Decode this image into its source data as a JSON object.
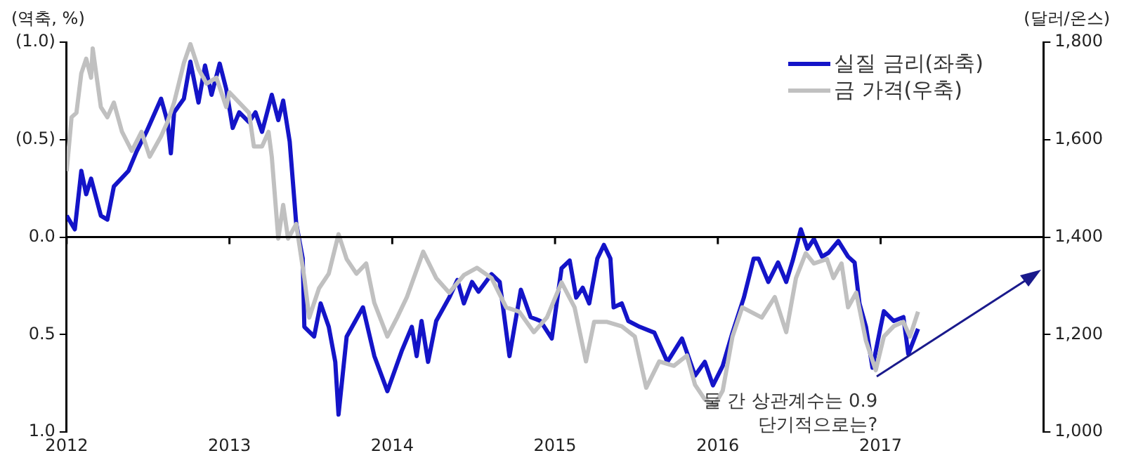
{
  "chart_data": {
    "type": "line",
    "ylabel": "(역축, %)",
    "y2label": "(달러/온스)",
    "xlim": [
      2012,
      2018
    ],
    "xticks": [
      2012,
      2013,
      2014,
      2015,
      2016,
      2017
    ],
    "ylim": [
      1,
      -1
    ],
    "yticks": [
      {
        "value": -1,
        "label": "(1.0)"
      },
      {
        "value": -0.5,
        "label": "(0.5)"
      },
      {
        "value": 0,
        "label": "0.0"
      },
      {
        "value": 0.5,
        "label": "0.5"
      },
      {
        "value": 1,
        "label": "1.0"
      }
    ],
    "y2lim": [
      1000,
      1800
    ],
    "y2ticks": [
      {
        "value": 1000,
        "label": "1,000"
      },
      {
        "value": 1200,
        "label": "1,200"
      },
      {
        "value": 1400,
        "label": "1,400"
      },
      {
        "value": 1600,
        "label": "1,600"
      },
      {
        "value": 1800,
        "label": "1,800"
      }
    ],
    "legend": "top right",
    "annotations": [
      "둘 간 상관계수는 0.9",
      "단기적으로는?"
    ],
    "series": [
      {
        "name": "금 가격(우축)",
        "color": "#c0c0c0",
        "axis": "y2",
        "x": [
          2012.0,
          2012.03,
          2012.06,
          2012.09,
          2012.12,
          2012.15,
          2012.16,
          2012.21,
          2012.25,
          2012.29,
          2012.34,
          2012.4,
          2012.46,
          2012.51,
          2012.58,
          2012.62,
          2012.66,
          2012.72,
          2012.76,
          2012.81,
          2012.86,
          2012.92,
          2012.98,
          2013.0,
          2013.06,
          2013.12,
          2013.15,
          2013.2,
          2013.24,
          2013.26,
          2013.3,
          2013.33,
          2013.36,
          2013.41,
          2013.46,
          2013.49,
          2013.55,
          2013.61,
          2013.67,
          2013.72,
          2013.78,
          2013.84,
          2013.89,
          2013.97,
          2014.03,
          2014.09,
          2014.19,
          2014.27,
          2014.35,
          2014.44,
          2014.52,
          2014.61,
          2014.7,
          2014.78,
          2014.87,
          2014.95,
          2015.04,
          2015.12,
          2015.19,
          2015.24,
          2015.32,
          2015.41,
          2015.49,
          2015.56,
          2015.64,
          2015.73,
          2015.81,
          2015.86,
          2015.92,
          2015.98,
          2016.03,
          2016.09,
          2016.15,
          2016.27,
          2016.35,
          2016.42,
          2016.48,
          2016.54,
          2016.59,
          2016.67,
          2016.71,
          2016.76,
          2016.8,
          2016.85,
          2016.91,
          2016.97,
          2017.02,
          2017.08,
          2017.14,
          2017.18,
          2017.23
        ],
        "values": [
          1535,
          1646,
          1655,
          1736,
          1766,
          1727,
          1787,
          1667,
          1646,
          1676,
          1616,
          1577,
          1616,
          1565,
          1607,
          1637,
          1676,
          1757,
          1796,
          1745,
          1715,
          1727,
          1667,
          1697,
          1676,
          1655,
          1586,
          1586,
          1616,
          1565,
          1397,
          1466,
          1397,
          1427,
          1316,
          1235,
          1295,
          1325,
          1406,
          1355,
          1325,
          1346,
          1265,
          1196,
          1235,
          1277,
          1370,
          1316,
          1286,
          1322,
          1337,
          1316,
          1256,
          1247,
          1205,
          1235,
          1307,
          1256,
          1145,
          1226,
          1226,
          1217,
          1196,
          1091,
          1145,
          1136,
          1157,
          1097,
          1067,
          1055,
          1085,
          1196,
          1256,
          1235,
          1277,
          1205,
          1316,
          1367,
          1346,
          1355,
          1316,
          1346,
          1256,
          1286,
          1187,
          1127,
          1196,
          1217,
          1226,
          1196,
          1247
        ]
      },
      {
        "name": "실질 금리(좌축)",
        "color": "#1414c8",
        "x": [
          2012.0,
          2012.05,
          2012.09,
          2012.12,
          2012.15,
          2012.21,
          2012.25,
          2012.29,
          2012.38,
          2012.43,
          2012.49,
          2012.58,
          2012.62,
          2012.64,
          2012.66,
          2012.72,
          2012.76,
          2012.81,
          2012.85,
          2012.89,
          2012.94,
          2012.98,
          2013.02,
          2013.06,
          2013.12,
          2013.16,
          2013.2,
          2013.26,
          2013.3,
          2013.33,
          2013.37,
          2013.41,
          2013.45,
          2013.46,
          2013.52,
          2013.56,
          2013.61,
          2013.65,
          2013.67,
          2013.72,
          2013.82,
          2013.89,
          2013.97,
          2014.06,
          2014.12,
          2014.15,
          2014.18,
          2014.22,
          2014.27,
          2014.35,
          2014.4,
          2014.44,
          2014.49,
          2014.53,
          2014.61,
          2014.66,
          2014.72,
          2014.79,
          2014.85,
          2014.91,
          2014.98,
          2015.04,
          2015.09,
          2015.13,
          2015.17,
          2015.21,
          2015.26,
          2015.3,
          2015.34,
          2015.36,
          2015.41,
          2015.45,
          2015.52,
          2015.61,
          2015.69,
          2015.78,
          2015.86,
          2015.92,
          2015.97,
          2016.03,
          2016.09,
          2016.16,
          2016.22,
          2016.25,
          2016.31,
          2016.37,
          2016.42,
          2016.46,
          2016.51,
          2016.55,
          2016.59,
          2016.64,
          2016.68,
          2016.74,
          2016.8,
          2016.84,
          2016.87,
          2016.91,
          2016.95,
          2017.0,
          2017.02,
          2017.08,
          2017.14,
          2017.17,
          2017.23
        ],
        "values": [
          -0.11,
          -0.04,
          -0.34,
          -0.22,
          -0.3,
          -0.11,
          -0.09,
          -0.26,
          -0.34,
          -0.44,
          -0.54,
          -0.71,
          -0.59,
          -0.43,
          -0.64,
          -0.71,
          -0.9,
          -0.69,
          -0.88,
          -0.73,
          -0.89,
          -0.76,
          -0.56,
          -0.64,
          -0.59,
          -0.64,
          -0.54,
          -0.73,
          -0.6,
          -0.7,
          -0.49,
          -0.07,
          0.11,
          0.46,
          0.51,
          0.34,
          0.46,
          0.64,
          0.91,
          0.51,
          0.36,
          0.61,
          0.79,
          0.58,
          0.46,
          0.61,
          0.43,
          0.64,
          0.43,
          0.31,
          0.22,
          0.34,
          0.23,
          0.28,
          0.19,
          0.23,
          0.61,
          0.27,
          0.41,
          0.43,
          0.52,
          0.16,
          0.12,
          0.31,
          0.26,
          0.34,
          0.11,
          0.04,
          0.11,
          0.36,
          0.34,
          0.43,
          0.46,
          0.49,
          0.64,
          0.52,
          0.71,
          0.64,
          0.76,
          0.66,
          0.49,
          0.31,
          0.11,
          0.11,
          0.23,
          0.13,
          0.23,
          0.12,
          -0.04,
          0.06,
          0.01,
          0.1,
          0.08,
          0.02,
          0.1,
          0.13,
          0.34,
          0.46,
          0.67,
          0.46,
          0.38,
          0.43,
          0.41,
          0.6,
          0.47
        ]
      }
    ]
  }
}
